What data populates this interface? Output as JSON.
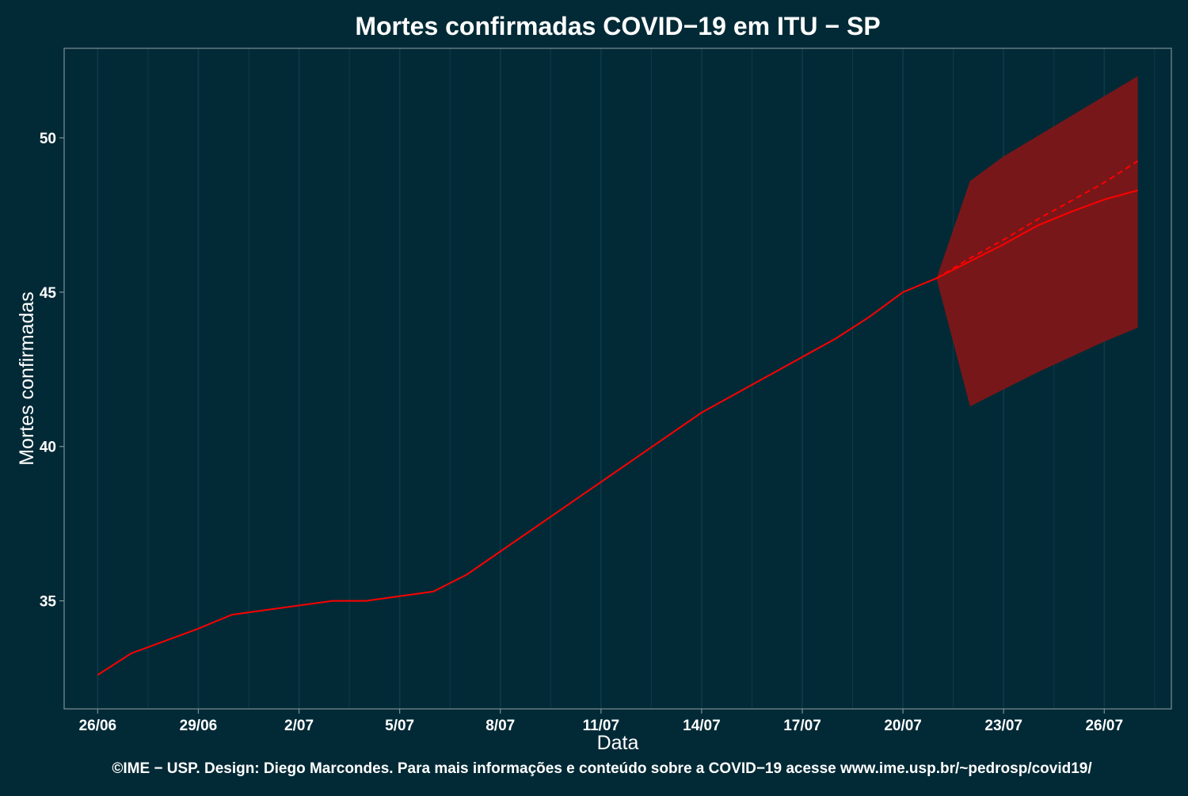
{
  "chart_data": {
    "type": "line",
    "title": "Mortes confirmadas COVID−19 em ITU − SP",
    "xlabel": "Data",
    "ylabel": "Mortes confirmadas",
    "footer": "©IME − USP. Design: Diego Marcondes. Para mais informações e conteúdo sobre a COVID−19 acesse www.ime.usp.br/~pedrosp/covid19/",
    "x_range": [
      "2020-06-25",
      "2020-07-28"
    ],
    "ylim": [
      31.5,
      52.9
    ],
    "y_ticks": [
      35,
      40,
      45,
      50
    ],
    "x_ticks": [
      {
        "date": "2020-06-26",
        "label": "26/06"
      },
      {
        "date": "2020-06-29",
        "label": "29/06"
      },
      {
        "date": "2020-07-02",
        "label": "2/07"
      },
      {
        "date": "2020-07-05",
        "label": "5/07"
      },
      {
        "date": "2020-07-08",
        "label": "8/07"
      },
      {
        "date": "2020-07-11",
        "label": "11/07"
      },
      {
        "date": "2020-07-14",
        "label": "14/07"
      },
      {
        "date": "2020-07-17",
        "label": "17/07"
      },
      {
        "date": "2020-07-20",
        "label": "20/07"
      },
      {
        "date": "2020-07-23",
        "label": "23/07"
      },
      {
        "date": "2020-07-26",
        "label": "26/07"
      }
    ],
    "grid": true,
    "colors": {
      "background": "#022a36",
      "grid": "#0c3b48",
      "axis": "#7c8f96",
      "text": "#ffffff",
      "line": "#ff0000",
      "band": "#821617"
    },
    "observed": {
      "x": [
        "2020-06-26",
        "2020-06-27",
        "2020-06-28",
        "2020-06-29",
        "2020-06-30",
        "2020-07-01",
        "2020-07-02",
        "2020-07-03",
        "2020-07-04",
        "2020-07-05",
        "2020-07-06",
        "2020-07-07",
        "2020-07-08",
        "2020-07-09",
        "2020-07-10",
        "2020-07-11",
        "2020-07-12",
        "2020-07-13",
        "2020-07-14",
        "2020-07-15",
        "2020-07-16",
        "2020-07-17",
        "2020-07-18",
        "2020-07-19",
        "2020-07-20",
        "2020-07-21"
      ],
      "y": [
        32.6,
        33.3,
        33.7,
        34.1,
        34.55,
        34.7,
        34.85,
        35.0,
        35.0,
        35.15,
        35.3,
        35.85,
        36.6,
        37.35,
        38.1,
        38.85,
        39.6,
        40.35,
        41.1,
        41.7,
        42.3,
        42.9,
        43.5,
        44.2,
        45.0,
        45.45
      ]
    },
    "forecast": {
      "x": [
        "2020-07-21",
        "2020-07-22",
        "2020-07-23",
        "2020-07-24",
        "2020-07-25",
        "2020-07-26",
        "2020-07-27"
      ],
      "mean": [
        45.45,
        46.0,
        46.55,
        47.15,
        47.6,
        48.0,
        48.3
      ],
      "trend": [
        45.45,
        46.1,
        46.7,
        47.35,
        47.95,
        48.55,
        49.25
      ],
      "lower": [
        45.45,
        41.3,
        41.85,
        42.4,
        42.9,
        43.4,
        43.85
      ],
      "upper": [
        45.45,
        48.6,
        49.4,
        50.05,
        50.7,
        51.35,
        52.0
      ]
    }
  }
}
